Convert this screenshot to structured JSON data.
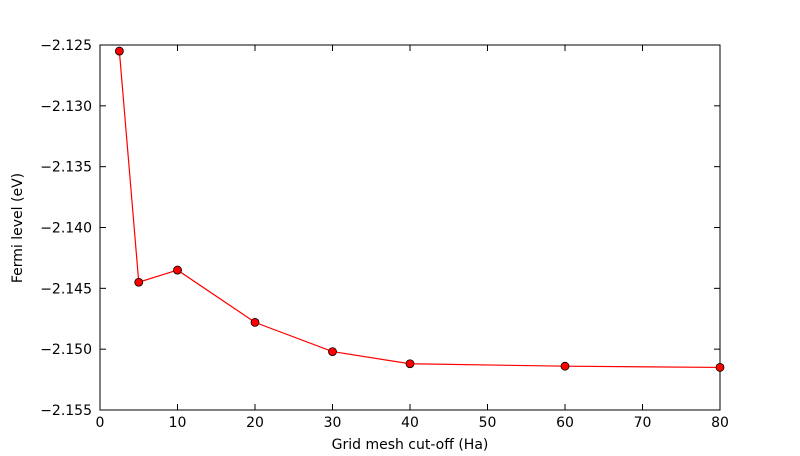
{
  "chart_data": {
    "type": "line",
    "x_label": "Grid mesh cut-off (Ha)",
    "y_label": "Fermi level (eV)",
    "x": [
      2.5,
      5,
      10,
      20,
      30,
      40,
      60,
      80
    ],
    "series": [
      {
        "color": "#ff0000",
        "values": [
          -2.1255,
          -2.1445,
          -2.1435,
          -2.1478,
          -2.1502,
          -2.1512,
          -2.1514,
          -2.1515
        ]
      }
    ],
    "xlim": [
      0,
      80
    ],
    "xticks": [
      0,
      10,
      20,
      30,
      40,
      50,
      60,
      70,
      80
    ],
    "ylim": [
      -2.155,
      -2.125
    ],
    "yticks": [
      {
        "value": -2.155,
        "label": "−2.155"
      },
      {
        "value": -2.15,
        "label": "−2.150"
      },
      {
        "value": -2.145,
        "label": "−2.145"
      },
      {
        "value": -2.14,
        "label": "−2.140"
      },
      {
        "value": -2.135,
        "label": "−2.135"
      },
      {
        "value": -2.13,
        "label": "−2.130"
      },
      {
        "value": -2.125,
        "label": "−2.125"
      }
    ],
    "grid": false
  }
}
